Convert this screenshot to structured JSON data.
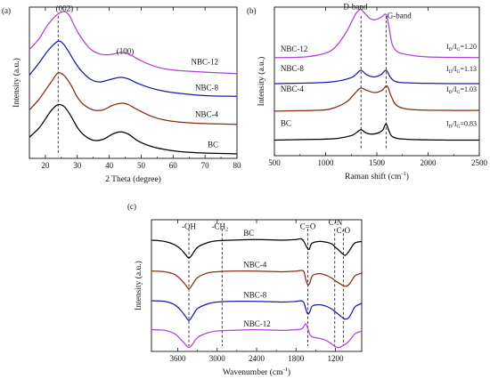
{
  "chart_data": [
    {
      "id": "a",
      "type": "line",
      "panel_label": "(a)",
      "xlabel": "2 Theta (degree)",
      "ylabel": "Intensity (a.u.)",
      "xlim": [
        15,
        80
      ],
      "ylim": [
        0,
        10
      ],
      "x_ticks": [
        20,
        30,
        40,
        50,
        60,
        70,
        80
      ],
      "peak_labels": [
        {
          "text": "(002)",
          "x": 26.0,
          "y": 9.75
        },
        {
          "text": "(100)",
          "x": 45.0,
          "y": 6.9
        }
      ],
      "guide_x": [
        24.0
      ],
      "series": [
        {
          "name": "BC",
          "color": "#000000",
          "label_x": 75,
          "label_y": 0.75,
          "x": [
            15,
            18,
            20,
            22,
            24,
            26,
            28,
            30,
            32,
            35,
            38,
            41,
            43.5,
            46,
            49,
            53,
            57,
            62,
            70,
            80
          ],
          "y": [
            1.4,
            2.0,
            2.6,
            3.2,
            3.55,
            3.4,
            2.8,
            2.05,
            1.55,
            1.2,
            1.25,
            1.6,
            1.75,
            1.6,
            1.15,
            0.8,
            0.6,
            0.45,
            0.35,
            0.3
          ]
        },
        {
          "name": "NBC-4",
          "color": "#8b2a12",
          "label_x": 75,
          "label_y": 2.75,
          "x": [
            15,
            18,
            20,
            22,
            24,
            26,
            28,
            30,
            32,
            35,
            38,
            41,
            44,
            46,
            49,
            53,
            57,
            62,
            70,
            80
          ],
          "y": [
            3.2,
            3.9,
            4.5,
            5.1,
            5.65,
            5.45,
            4.85,
            4.05,
            3.55,
            3.2,
            3.2,
            3.5,
            3.65,
            3.55,
            3.2,
            2.8,
            2.55,
            2.4,
            2.3,
            2.25
          ]
        },
        {
          "name": "NBC-8",
          "color": "#1a1aa8",
          "label_x": 75,
          "label_y": 4.5,
          "x": [
            15,
            18,
            20,
            22,
            24,
            25.5,
            27,
            29,
            31,
            34,
            37,
            40,
            43.5,
            46,
            49,
            53,
            57,
            62,
            70,
            80
          ],
          "y": [
            5.5,
            6.3,
            6.9,
            7.4,
            7.75,
            7.6,
            7.15,
            6.45,
            5.85,
            5.25,
            5.05,
            5.2,
            5.35,
            5.25,
            4.95,
            4.65,
            4.45,
            4.3,
            4.15,
            4.1
          ]
        },
        {
          "name": "NBC-12",
          "color": "#b040d8",
          "label_x": 75,
          "label_y": 6.2,
          "x": [
            15,
            18,
            20,
            22,
            24,
            26,
            27.5,
            29,
            31,
            34,
            37,
            40,
            44,
            47,
            50,
            54,
            58,
            62,
            70,
            80
          ],
          "y": [
            7.2,
            7.9,
            8.6,
            9.15,
            9.55,
            9.7,
            9.45,
            8.8,
            8.05,
            7.25,
            6.9,
            6.85,
            7.0,
            6.8,
            6.45,
            6.1,
            5.9,
            5.8,
            5.7,
            5.6
          ]
        }
      ]
    },
    {
      "id": "b",
      "type": "line",
      "panel_label": "(b)",
      "xlabel": "Raman shift (cm",
      "xlabel_sup": "-1",
      "xlabel_end": ")",
      "ylabel": "Intensity (a.u.)",
      "xlim": [
        500,
        2500
      ],
      "ylim": [
        0,
        10
      ],
      "x_ticks": [
        500,
        1000,
        1500,
        2000,
        2500
      ],
      "band_labels": [
        {
          "text": "D-band",
          "x": 1290,
          "y": 9.85
        },
        {
          "text": "G-band",
          "x": 1720,
          "y": 9.25
        }
      ],
      "guide_x": [
        1345,
        1590
      ],
      "ratio_prefix": "I",
      "ratio_sub_d": "D",
      "ratio_slash": "/I",
      "ratio_sub_g": "G",
      "series": [
        {
          "name": "BC",
          "ratio_value": "=0.83",
          "color": "#000000",
          "label_x": 560,
          "label_y": 2.0,
          "ratio_y": 2.0,
          "x": [
            500,
            900,
            1100,
            1250,
            1300,
            1345,
            1390,
            1450,
            1520,
            1560,
            1590,
            1620,
            1660,
            1800,
            2200,
            2500
          ],
          "y": [
            1.05,
            1.1,
            1.15,
            1.35,
            1.55,
            1.75,
            1.55,
            1.45,
            1.55,
            1.75,
            2.15,
            1.65,
            1.25,
            1.1,
            1.05,
            1.05
          ]
        },
        {
          "name": "NBC-4",
          "ratio_value": "=1.03",
          "color": "#8b2a12",
          "label_x": 560,
          "label_y": 4.3,
          "ratio_y": 4.3,
          "x": [
            500,
            900,
            1050,
            1200,
            1280,
            1340,
            1400,
            1480,
            1550,
            1600,
            1640,
            1700,
            1850,
            2200,
            2500
          ],
          "y": [
            3.0,
            3.05,
            3.15,
            3.6,
            4.15,
            4.55,
            4.4,
            4.25,
            4.4,
            4.7,
            4.0,
            3.35,
            3.1,
            3.05,
            3.05
          ]
        },
        {
          "name": "NBC-8",
          "ratio_value": "=1.13",
          "color": "#1a1aa8",
          "label_x": 560,
          "label_y": 5.7,
          "ratio_y": 5.7,
          "x": [
            500,
            900,
            1100,
            1250,
            1300,
            1345,
            1400,
            1470,
            1540,
            1590,
            1630,
            1680,
            1800,
            2200,
            2500
          ],
          "y": [
            4.85,
            4.9,
            5.0,
            5.25,
            5.5,
            5.75,
            5.45,
            5.3,
            5.45,
            5.75,
            5.3,
            5.0,
            4.9,
            4.85,
            4.85
          ]
        },
        {
          "name": "NBC-12",
          "ratio_value": "=1.20",
          "color": "#b040d8",
          "label_x": 560,
          "label_y": 7.0,
          "ratio_y": 7.2,
          "x": [
            500,
            800,
            1000,
            1100,
            1200,
            1260,
            1300,
            1340,
            1380,
            1430,
            1480,
            1540,
            1590,
            1620,
            1650,
            1700,
            1800,
            2000,
            2500
          ],
          "y": [
            6.6,
            6.65,
            6.9,
            7.35,
            8.3,
            9.1,
            9.6,
            9.85,
            9.6,
            9.25,
            9.15,
            9.3,
            9.5,
            8.6,
            7.5,
            7.0,
            6.8,
            6.65,
            6.6
          ]
        }
      ]
    },
    {
      "id": "c",
      "type": "line",
      "panel_label": "(c)",
      "xlabel": "Wavenumber (cm",
      "xlabel_sup": "-1",
      "xlabel_end": ")",
      "ylabel": "Intensity (a.u.)",
      "xlim": [
        4000,
        800
      ],
      "ylim": [
        0,
        10
      ],
      "x_ticks": [
        3600,
        3000,
        2400,
        1800,
        1200
      ],
      "group_labels": [
        {
          "text": "-OH",
          "x": 3430,
          "y": 9.3
        },
        {
          "text": "-CH",
          "sub": "2",
          "x": 2960,
          "y": 9.3
        },
        {
          "text": "C=O",
          "x": 1620,
          "y": 9.3
        },
        {
          "text": "C-N",
          "x": 1200,
          "y": 9.6
        },
        {
          "text": "C-O",
          "x": 1080,
          "y": 9.0
        }
      ],
      "guide_x": [
        3430,
        2925,
        1620,
        1210,
        1080
      ],
      "series": [
        {
          "name": "BC",
          "color": "#000000",
          "label_x": 2600,
          "label_y": 8.8,
          "x": [
            4000,
            3800,
            3650,
            3550,
            3480,
            3430,
            3380,
            3300,
            3150,
            3000,
            2800,
            2400,
            2000,
            1800,
            1720,
            1680,
            1640,
            1600,
            1560,
            1450,
            1350,
            1250,
            1200,
            1150,
            1100,
            1050,
            1000,
            950,
            900,
            800
          ],
          "y": [
            8.45,
            8.35,
            8.1,
            7.75,
            7.35,
            7.1,
            7.35,
            7.9,
            8.25,
            8.4,
            8.45,
            8.5,
            8.45,
            8.5,
            8.55,
            8.35,
            7.95,
            7.75,
            8.2,
            8.35,
            8.3,
            8.15,
            7.9,
            7.7,
            7.45,
            7.3,
            7.55,
            7.95,
            8.25,
            8.35
          ]
        },
        {
          "name": "NBC-4",
          "color": "#8b2a12",
          "label_x": 2600,
          "label_y": 6.4,
          "x": [
            4000,
            3800,
            3650,
            3550,
            3480,
            3430,
            3380,
            3300,
            3150,
            3000,
            2800,
            2400,
            2000,
            1800,
            1720,
            1680,
            1650,
            1620,
            1590,
            1550,
            1450,
            1350,
            1250,
            1200,
            1150,
            1100,
            1050,
            1000,
            950,
            900,
            800
          ],
          "y": [
            6.1,
            6.05,
            5.85,
            5.45,
            5.05,
            4.75,
            5.05,
            5.6,
            5.95,
            6.05,
            6.1,
            6.1,
            6.05,
            6.1,
            6.15,
            6.05,
            5.45,
            5.05,
            5.2,
            5.75,
            5.9,
            5.8,
            5.55,
            5.35,
            5.2,
            5.05,
            4.95,
            5.05,
            5.4,
            5.75,
            5.95
          ]
        },
        {
          "name": "NBC-8",
          "color": "#1a1aa8",
          "label_x": 2600,
          "label_y": 4.1,
          "x": [
            4000,
            3800,
            3650,
            3550,
            3480,
            3430,
            3380,
            3300,
            3150,
            3000,
            2800,
            2400,
            2000,
            1800,
            1720,
            1680,
            1650,
            1620,
            1590,
            1550,
            1450,
            1350,
            1250,
            1200,
            1150,
            1100,
            1050,
            1000,
            950,
            900,
            800
          ],
          "y": [
            3.85,
            3.8,
            3.55,
            3.1,
            2.65,
            2.35,
            2.65,
            3.25,
            3.6,
            3.75,
            3.8,
            3.8,
            3.75,
            3.8,
            3.85,
            3.7,
            3.2,
            2.85,
            3.0,
            3.45,
            3.55,
            3.45,
            3.2,
            3.0,
            2.8,
            2.6,
            2.45,
            2.55,
            2.95,
            3.4,
            3.65
          ]
        },
        {
          "name": "NBC-12",
          "color": "#b040d8",
          "label_x": 2600,
          "label_y": 1.9,
          "x": [
            4000,
            3800,
            3650,
            3550,
            3480,
            3430,
            3380,
            3300,
            3150,
            3000,
            2800,
            2400,
            2000,
            1800,
            1720,
            1680,
            1650,
            1620,
            1590,
            1550,
            1450,
            1350,
            1250,
            1200,
            1150,
            1100,
            1050,
            1000,
            950,
            900,
            800
          ],
          "y": [
            1.65,
            1.6,
            1.35,
            0.9,
            0.5,
            0.3,
            0.5,
            1.05,
            1.4,
            1.55,
            1.6,
            1.65,
            1.6,
            1.65,
            1.7,
            1.9,
            2.1,
            1.75,
            1.3,
            1.1,
            1.0,
            0.85,
            0.55,
            0.35,
            0.3,
            0.4,
            0.55,
            0.75,
            1.05,
            1.35,
            1.55
          ]
        }
      ]
    }
  ]
}
